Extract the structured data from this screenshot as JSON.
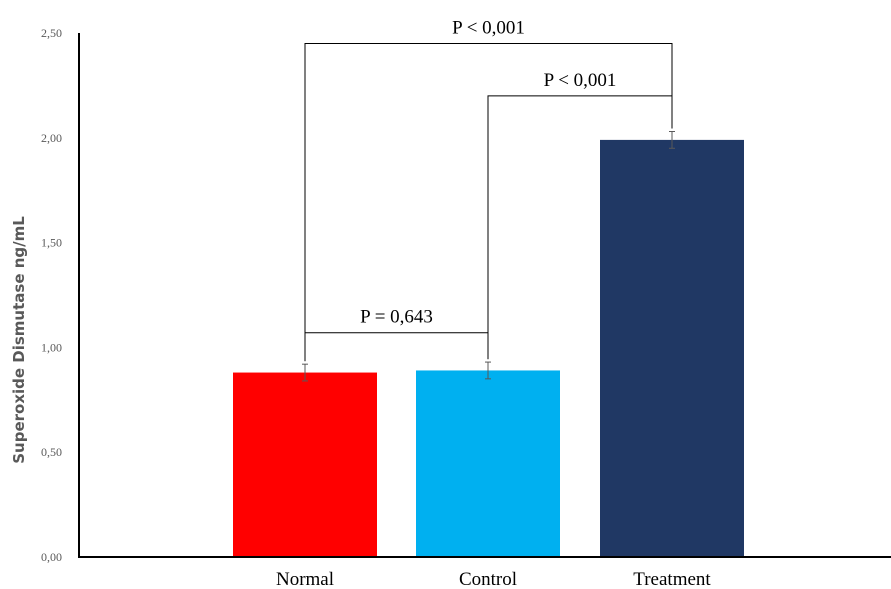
{
  "chart_data": {
    "type": "bar",
    "title": "",
    "xlabel": "",
    "ylabel": "Superoxide Dismutase ng/mL",
    "ylim": [
      0,
      2.5
    ],
    "yticks": [
      "0,00",
      "0,50",
      "1,00",
      "1,50",
      "2,00",
      "2,50"
    ],
    "categories": [
      "Normal",
      "Control",
      "Treatment"
    ],
    "values": [
      0.88,
      0.89,
      1.99
    ],
    "errors": [
      0.04,
      0.04,
      0.04
    ],
    "colors": [
      "#ff0000",
      "#00b0f0",
      "#203864"
    ],
    "grid": false,
    "legend": "none",
    "annotations": [
      {
        "from": 1,
        "to": 2,
        "text": "P = 0,643",
        "level": 1.07
      },
      {
        "from": 2,
        "to": 3,
        "text": "P < 0,001",
        "level": 2.2
      },
      {
        "from": 1,
        "to": 3,
        "text": "P < 0,001",
        "level": 2.45
      }
    ]
  }
}
